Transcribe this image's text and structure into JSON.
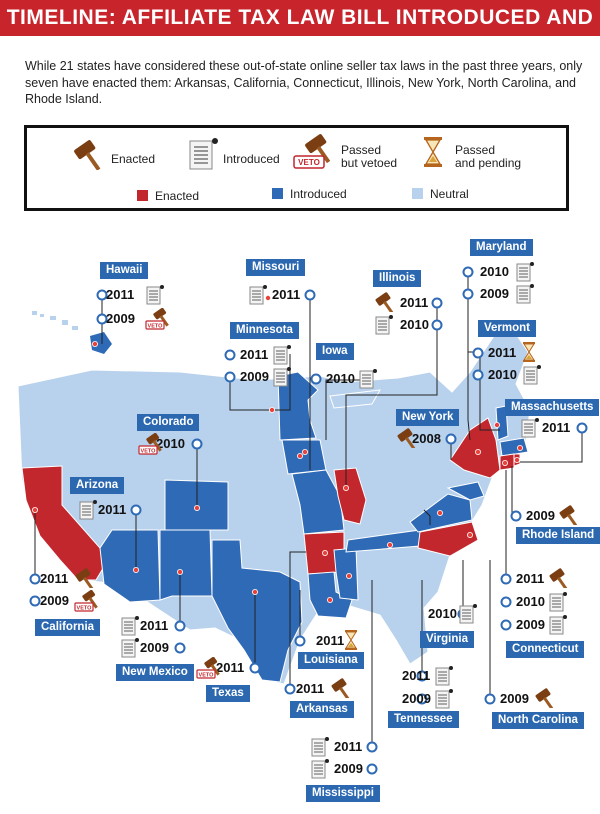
{
  "title": "TIMELINE: AFFILIATE TAX LAW BILL INTRODUCED AND ENACTED",
  "intro": "While 21 states have considered these out-of-state online seller tax laws in the past three years, only seven have enacted them: Arkansas, California, Connecticut, Illinois, New York, North Carolina, and Rhode Island.",
  "legend": {
    "icons": [
      {
        "icon": "gavel-icon",
        "label": "Enacted"
      },
      {
        "icon": "document-icon",
        "label": "Introduced"
      },
      {
        "icon": "veto-icon",
        "label_line1": "Passed",
        "label_line2": "but vetoed"
      },
      {
        "icon": "hourglass-icon",
        "label_line1": "Passed",
        "label_line2": "and pending"
      }
    ],
    "colors": [
      {
        "label": "Enacted",
        "color": "#c1272d"
      },
      {
        "label": "Introduced",
        "color": "#2e6ab5"
      },
      {
        "label": "Neutral",
        "color": "#b8d1ec"
      }
    ],
    "veto_stamp": "VETO"
  },
  "states": [
    {
      "name": "Hawaii",
      "entries": [
        {
          "year": "2011",
          "status": "introduced"
        },
        {
          "year": "2009",
          "status": "vetoed"
        }
      ]
    },
    {
      "name": "Missouri",
      "entries": [
        {
          "year": "2011",
          "status": "introduced"
        }
      ]
    },
    {
      "name": "Illinois",
      "entries": [
        {
          "year": "2011",
          "status": "enacted"
        },
        {
          "year": "2010",
          "status": "introduced"
        }
      ]
    },
    {
      "name": "Maryland",
      "entries": [
        {
          "year": "2010",
          "status": "introduced"
        },
        {
          "year": "2009",
          "status": "introduced"
        }
      ]
    },
    {
      "name": "Minnesota",
      "entries": [
        {
          "year": "2011",
          "status": "introduced"
        },
        {
          "year": "2009",
          "status": "introduced"
        }
      ]
    },
    {
      "name": "Iowa",
      "entries": [
        {
          "year": "2010",
          "status": "introduced"
        }
      ]
    },
    {
      "name": "Vermont",
      "entries": [
        {
          "year": "2011",
          "status": "pending"
        },
        {
          "year": "2010",
          "status": "introduced"
        }
      ]
    },
    {
      "name": "Colorado",
      "entries": [
        {
          "year": "2010",
          "status": "vetoed"
        }
      ]
    },
    {
      "name": "New York",
      "entries": [
        {
          "year": "2008",
          "status": "enacted"
        }
      ]
    },
    {
      "name": "Massachusetts",
      "entries": [
        {
          "year": "2011",
          "status": "introduced"
        }
      ]
    },
    {
      "name": "Arizona",
      "entries": [
        {
          "year": "2011",
          "status": "introduced"
        }
      ]
    },
    {
      "name": "Rhode Island",
      "entries": [
        {
          "year": "2009",
          "status": "enacted"
        }
      ]
    },
    {
      "name": "California",
      "entries": [
        {
          "year": "2011",
          "status": "enacted"
        },
        {
          "year": "2009",
          "status": "vetoed"
        }
      ]
    },
    {
      "name": "Connecticut",
      "entries": [
        {
          "year": "2011",
          "status": "enacted"
        },
        {
          "year": "2010",
          "status": "introduced"
        },
        {
          "year": "2009",
          "status": "introduced"
        }
      ]
    },
    {
      "name": "New Mexico",
      "entries": [
        {
          "year": "2011",
          "status": "introduced"
        },
        {
          "year": "2009",
          "status": "introduced"
        }
      ]
    },
    {
      "name": "Virginia",
      "entries": [
        {
          "year": "2010",
          "status": "introduced"
        }
      ]
    },
    {
      "name": "Louisiana",
      "entries": [
        {
          "year": "2011",
          "status": "pending"
        }
      ]
    },
    {
      "name": "Texas",
      "entries": [
        {
          "year": "2011",
          "status": "vetoed"
        }
      ]
    },
    {
      "name": "Tennessee",
      "entries": [
        {
          "year": "2011",
          "status": "introduced"
        },
        {
          "year": "2009",
          "status": "introduced"
        }
      ]
    },
    {
      "name": "Arkansas",
      "entries": [
        {
          "year": "2011",
          "status": "enacted"
        }
      ]
    },
    {
      "name": "North Carolina",
      "entries": [
        {
          "year": "2009",
          "status": "enacted"
        }
      ]
    },
    {
      "name": "Mississippi",
      "entries": [
        {
          "year": "2011",
          "status": "introduced"
        },
        {
          "year": "2009",
          "status": "introduced"
        }
      ]
    }
  ]
}
